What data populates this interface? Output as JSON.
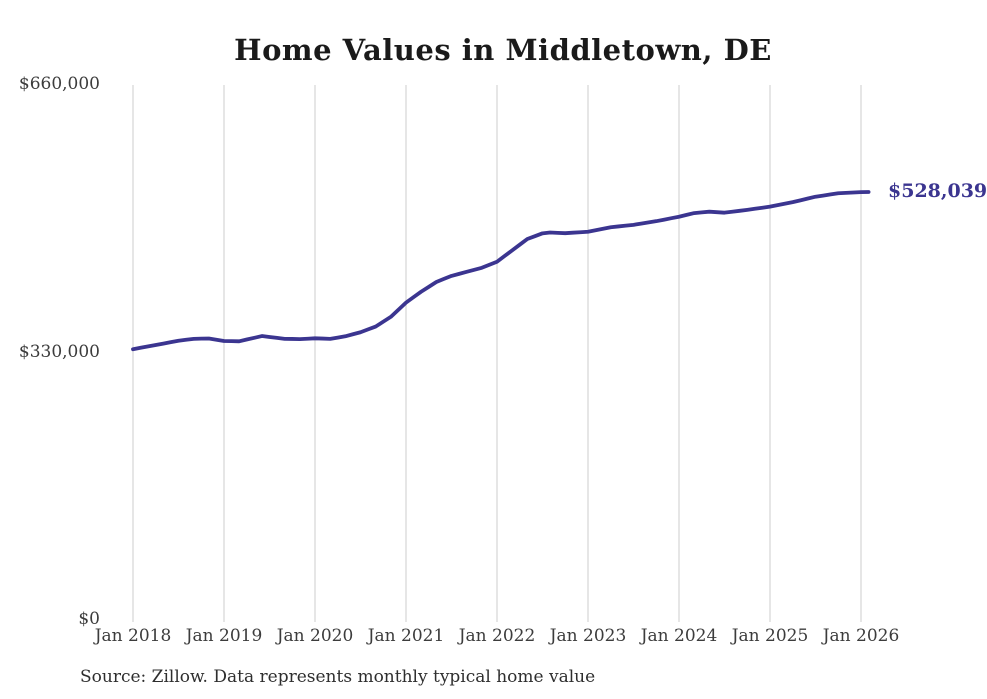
{
  "page": {
    "source_note": "Source: Zillow. Data represents monthly typical home value"
  },
  "chart_data": {
    "type": "line",
    "title": "Home Values in Middletown, DE",
    "series_name": "Monthly typical home value",
    "frequency": "monthly",
    "x_start": "2018-01",
    "x_end": "2026-02",
    "values": [
      334000,
      335800,
      337500,
      339300,
      341000,
      342800,
      344500,
      345700,
      346800,
      347100,
      347300,
      345800,
      344200,
      344000,
      343800,
      346000,
      348100,
      350300,
      349100,
      348000,
      346800,
      346700,
      346500,
      347000,
      347500,
      347200,
      346800,
      348400,
      350000,
      352500,
      355000,
      358500,
      362000,
      368000,
      374000,
      382800,
      391500,
      398300,
      405000,
      411000,
      417000,
      420800,
      424500,
      427000,
      429500,
      432000,
      434500,
      438300,
      442000,
      449000,
      456000,
      463000,
      470000,
      473500,
      477000,
      478000,
      477600,
      477200,
      477800,
      478400,
      479000,
      480800,
      482700,
      484500,
      485500,
      486500,
      487500,
      489000,
      490500,
      492000,
      493800,
      495700,
      497500,
      499800,
      502000,
      502900,
      503700,
      503100,
      502500,
      503700,
      504800,
      506000,
      507300,
      508600,
      509900,
      511800,
      513600,
      515500,
      517700,
      520000,
      522200,
      523600,
      525100,
      526500,
      526900,
      527400,
      527800,
      528039
    ],
    "x_tick_labels": [
      "Jan 2018",
      "Jan 2019",
      "Jan 2020",
      "Jan 2021",
      "Jan 2022",
      "Jan 2023",
      "Jan 2024",
      "Jan 2025",
      "Jan 2026"
    ],
    "x_tick_month_interval": 12,
    "y_ticks": [
      {
        "label": "$0",
        "value": 0
      },
      {
        "label": "$330,000",
        "value": 330000
      },
      {
        "label": "$660,000",
        "value": 660000
      }
    ],
    "ylim": [
      0,
      660000
    ],
    "grid": "vertical-yearly",
    "legend": "none",
    "end_label": "$528,039",
    "end_value": 528039,
    "colors": {
      "line": "#3b3590",
      "end_label": "#3b3590",
      "grid": "#cccccc",
      "tick_text": "#3c3c3c",
      "title_text": "#1a1a1a",
      "background": "#ffffff"
    }
  }
}
